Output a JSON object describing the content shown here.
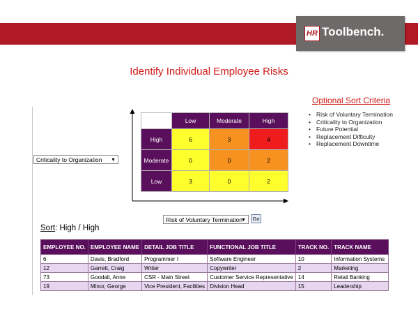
{
  "header": {
    "logo_mark": "HR",
    "logo_text": "Toolbench."
  },
  "page_title": "Identify Individual Employee Risks",
  "sort_criteria": {
    "title": "Optional Sort Criteria",
    "items": [
      "Risk of Voluntary Termination",
      "Criticality to Organization",
      "Future Potential",
      "Replacement Difficulty",
      "Replacement Downtime"
    ]
  },
  "y_axis_select": {
    "value": "Criticality to Organization"
  },
  "x_axis_select": {
    "value": "Risk of Voluntary Termination"
  },
  "go_button": {
    "label": "Go"
  },
  "matrix": {
    "col_headers": [
      "Low",
      "Moderate",
      "High"
    ],
    "rows": [
      {
        "label": "High",
        "cells": [
          "6",
          "3",
          "4"
        ]
      },
      {
        "label": "Moderate",
        "cells": [
          "0",
          "0",
          "2"
        ]
      },
      {
        "label": "Low",
        "cells": [
          "3",
          "0",
          "2"
        ]
      }
    ],
    "colors": {
      "yellow": "#ffff2e",
      "orange": "#f79221",
      "red": "#ee1c1c",
      "header": "#590f5b"
    }
  },
  "sort_label": {
    "prefix": "Sort",
    "value": ": High / High"
  },
  "table": {
    "headers": [
      "EMPLOYEE NO.",
      "EMPLOYEE NAME",
      "DETAIL JOB TITLE",
      "FUNCTIONAL JOB TITLE",
      "TRACK NO.",
      "TRACK NAME"
    ],
    "rows": [
      [
        "6",
        "Davis, Bradford",
        "Programmer I",
        "Software Engineer",
        "10",
        "Information Systems"
      ],
      [
        "12",
        "Garrett, Craig",
        "Writer",
        "Copywriter",
        "2",
        "Marketing"
      ],
      [
        "73",
        "Goodall, Anne",
        "CSR - Main Street",
        "Customer Service Representative",
        "14",
        "Retail Banking"
      ],
      [
        "19",
        "Minor, George",
        "Vice President, Facilities",
        "Division Head",
        "15",
        "Leadership"
      ]
    ]
  }
}
